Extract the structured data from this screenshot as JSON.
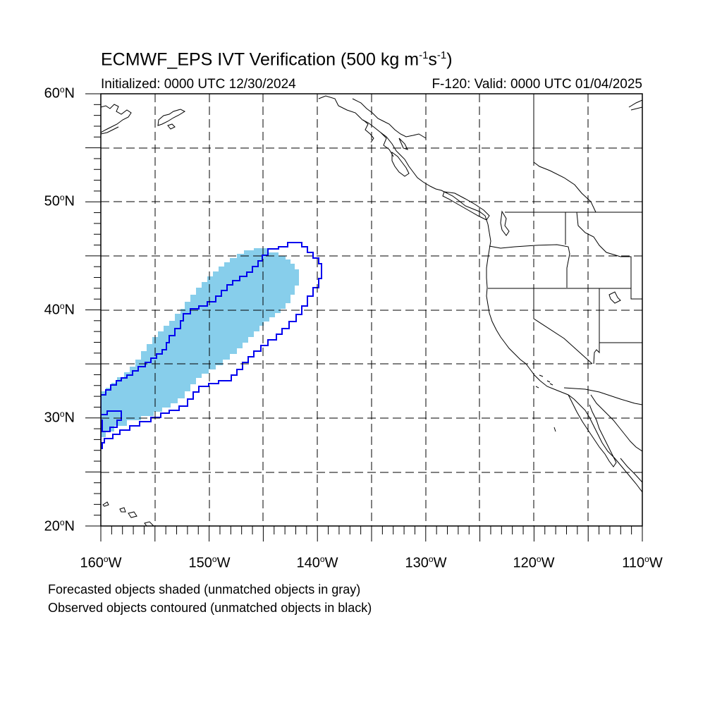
{
  "title_text": "ECMWF_EPS IVT Verification (500 kg m",
  "title_exp1": "-1",
  "title_mid": "s",
  "title_exp2": "-1",
  "title_end": ")",
  "initialized": "Initialized: 0000 UTC 12/30/2024",
  "valid": "F-120: Valid: 0000 UTC 01/04/2025",
  "lat_labels": [
    {
      "num": "60",
      "unit": "o",
      "hemi": "N"
    },
    {
      "num": "50",
      "unit": "o",
      "hemi": "N"
    },
    {
      "num": "40",
      "unit": "o",
      "hemi": "N"
    },
    {
      "num": "30",
      "unit": "o",
      "hemi": "N"
    },
    {
      "num": "20",
      "unit": "o",
      "hemi": "N"
    }
  ],
  "lon_labels": [
    {
      "num": "160",
      "unit": "o",
      "hemi": "W"
    },
    {
      "num": "150",
      "unit": "o",
      "hemi": "W"
    },
    {
      "num": "140",
      "unit": "o",
      "hemi": "W"
    },
    {
      "num": "130",
      "unit": "o",
      "hemi": "W"
    },
    {
      "num": "120",
      "unit": "o",
      "hemi": "W"
    },
    {
      "num": "110",
      "unit": "o",
      "hemi": "W"
    }
  ],
  "legend_forecast": "Forecasted objects shaded (unmatched objects in gray)",
  "legend_observed": "Observed objects contoured (unmatched objects in black)",
  "colors": {
    "forecast_fill": "#87ceeb",
    "observed_contour": "#0000ee",
    "coastline": "#000000",
    "grid": "#000000"
  },
  "map_extent": {
    "lon_min": -160,
    "lon_max": -110,
    "lat_min": 20,
    "lat_max": 60
  }
}
